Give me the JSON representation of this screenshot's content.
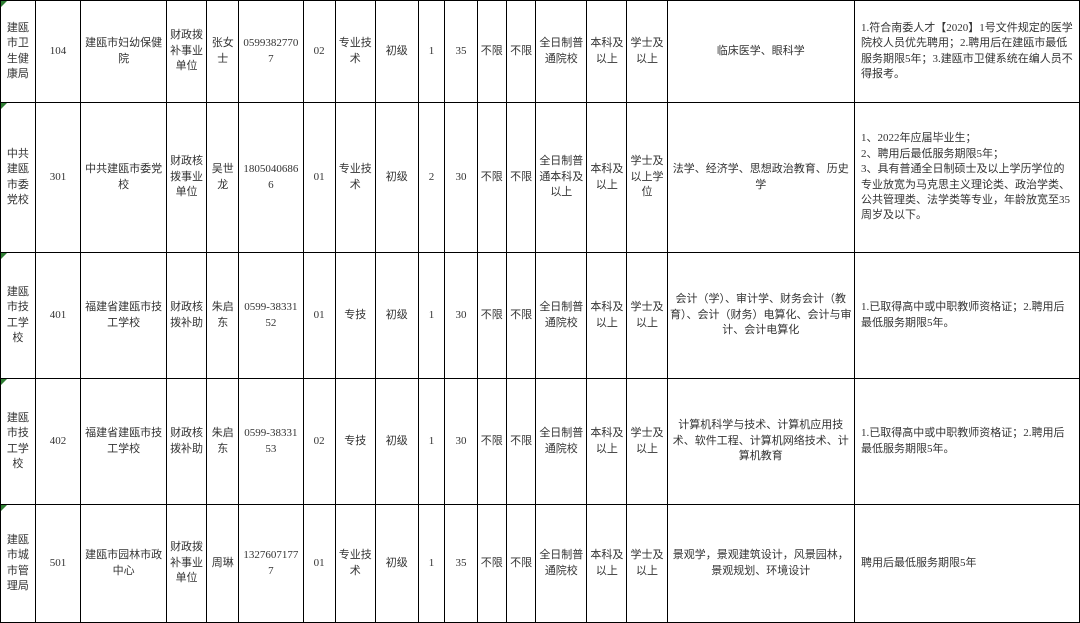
{
  "cols": {
    "w0": 26,
    "w1": 34,
    "w2": 64,
    "w3": 30,
    "w4": 24,
    "w5": 48,
    "w6": 24,
    "w7": 30,
    "w8": 32,
    "w9": 20,
    "w10": 24,
    "w11": 22,
    "w12": 22,
    "w13": 38,
    "w14": 30,
    "w15": 30,
    "w16": 140,
    "w17": 168
  },
  "rows": [
    {
      "cls": "row-104",
      "c0": "建瓯市卫生健康局",
      "c1": "104",
      "c2": "建瓯市妇幼保健院",
      "c3": "财政拨补事业单位",
      "c4": "张女士",
      "c5": "0599382770\n7",
      "c6": "02",
      "c7": "专业技术",
      "c8": "初级",
      "c9": "1",
      "c10": "35",
      "c11": "不限",
      "c12": "不限",
      "c13": "全日制普通院校",
      "c14": "本科及以上",
      "c15": "学士及以上",
      "c16": "临床医学、眼科学",
      "c17": "1.符合南委人才【2020】1号文件规定的医学院校人员优先聘用；2.聘用后在建瓯市最低服务期限5年；3.建瓯市卫健系统在编人员不得报考。"
    },
    {
      "cls": "row-301",
      "c0": "中共建瓯市委党校",
      "c1": "301",
      "c2": "中共建瓯市委党校",
      "c3": "财政核拨事业单位",
      "c4": "吴世龙",
      "c5": "1805040686\n6",
      "c6": "01",
      "c7": "专业技术",
      "c8": "初级",
      "c9": "2",
      "c10": "30",
      "c11": "不限",
      "c12": "不限",
      "c13": "全日制普通本科及以上",
      "c14": "本科及以上",
      "c15": "学士及以上学位",
      "c16": "法学、经济学、思想政治教育、历史学",
      "c17": "1、2022年应届毕业生；\n2、聘用后最低服务期限5年；\n3、具有普通全日制硕士及以上学历学位的专业放宽为马克思主义理论类、政治学类、公共管理类、法学类等专业，年龄放宽至35周岁及以下。"
    },
    {
      "cls": "row-401",
      "c0": "建瓯市技工学校",
      "c1": "401",
      "c2": "福建省建瓯市技工学校",
      "c3": "财政核拨补助",
      "c4": "朱启东",
      "c5": "0599-38331\n52",
      "c6": "01",
      "c7": "专技",
      "c8": "初级",
      "c9": "1",
      "c10": "30",
      "c11": "不限",
      "c12": "不限",
      "c13": "全日制普通院校",
      "c14": "本科及以上",
      "c15": "学士及以上",
      "c16": "会计（学）、审计学、财务会计（教育）、会计（财务）电算化、会计与审计、会计电算化",
      "c17": "1.已取得高中或中职教师资格证；2.聘用后最低服务期限5年。"
    },
    {
      "cls": "row-402",
      "c0": "建瓯市技工学校",
      "c1": "402",
      "c2": "福建省建瓯市技工学校",
      "c3": "财政核拨补助",
      "c4": "朱启东",
      "c5": "0599-38331\n53",
      "c6": "02",
      "c7": "专技",
      "c8": "初级",
      "c9": "1",
      "c10": "30",
      "c11": "不限",
      "c12": "不限",
      "c13": "全日制普通院校",
      "c14": "本科及以上",
      "c15": "学士及以上",
      "c16": "计算机科学与技术、计算机应用技术、软件工程、计算机网络技术、计算机教育",
      "c17": "1.已取得高中或中职教师资格证；2.聘用后最低服务期限5年。"
    },
    {
      "cls": "row-501",
      "c0": "建瓯市城市管理局",
      "c1": "501",
      "c2": "建瓯市园林市政中心",
      "c3": "财政拨补事业单位",
      "c4": "周琳",
      "c5": "1327607177\n7",
      "c6": "01",
      "c7": "专业技术",
      "c8": "初级",
      "c9": "1",
      "c10": "35",
      "c11": "不限",
      "c12": "不限",
      "c13": "全日制普通院校",
      "c14": "本科及以上",
      "c15": "学士及以上",
      "c16": "景观学，景观建筑设计，风景园林，景观规划、环境设计",
      "c17": "聘用后最低服务期限5年"
    }
  ]
}
